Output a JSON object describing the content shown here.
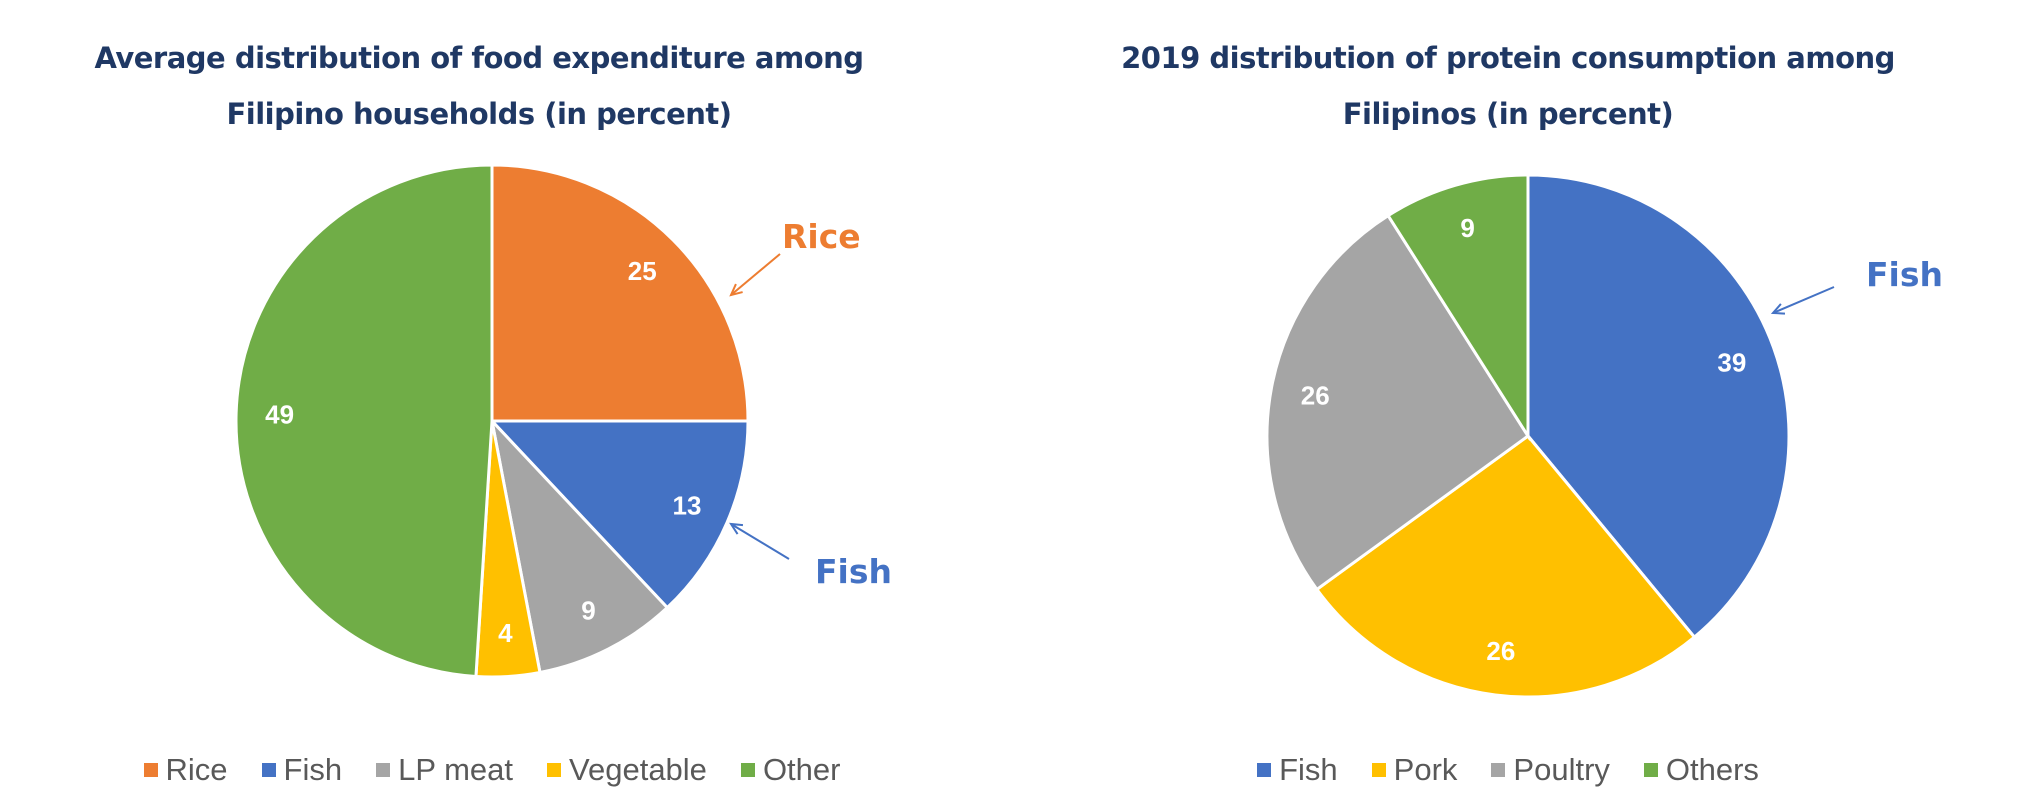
{
  "chart_data": [
    {
      "type": "pie",
      "title_line1": "Average distribution of food expenditure among",
      "title_line2": "Filipino households (in percent)",
      "categories": [
        "Rice",
        "Fish",
        "LP meat",
        "Vegetable",
        "Other"
      ],
      "values": [
        25,
        13,
        9,
        4,
        49
      ],
      "colors": [
        "#ED7D31",
        "#4472C4",
        "#A5A5A5",
        "#FFC000",
        "#70AD47"
      ],
      "legend_position": "bottom",
      "annotations": [
        {
          "text": "Rice",
          "color": "#ED7D31",
          "points_to": "Rice"
        },
        {
          "text": "Fish",
          "color": "#4472C4",
          "points_to": "Fish"
        }
      ]
    },
    {
      "type": "pie",
      "title_line1": "2019 distribution of protein consumption among",
      "title_line2": "Filipinos (in percent)",
      "categories": [
        "Fish",
        "Pork",
        "Poultry",
        "Others"
      ],
      "values": [
        39,
        26,
        26,
        9
      ],
      "colors": [
        "#4472C4",
        "#FFC000",
        "#A5A5A5",
        "#70AD47"
      ],
      "legend_position": "bottom",
      "annotations": [
        {
          "text": "Fish",
          "color": "#4472C4",
          "points_to": "Fish"
        }
      ]
    }
  ]
}
